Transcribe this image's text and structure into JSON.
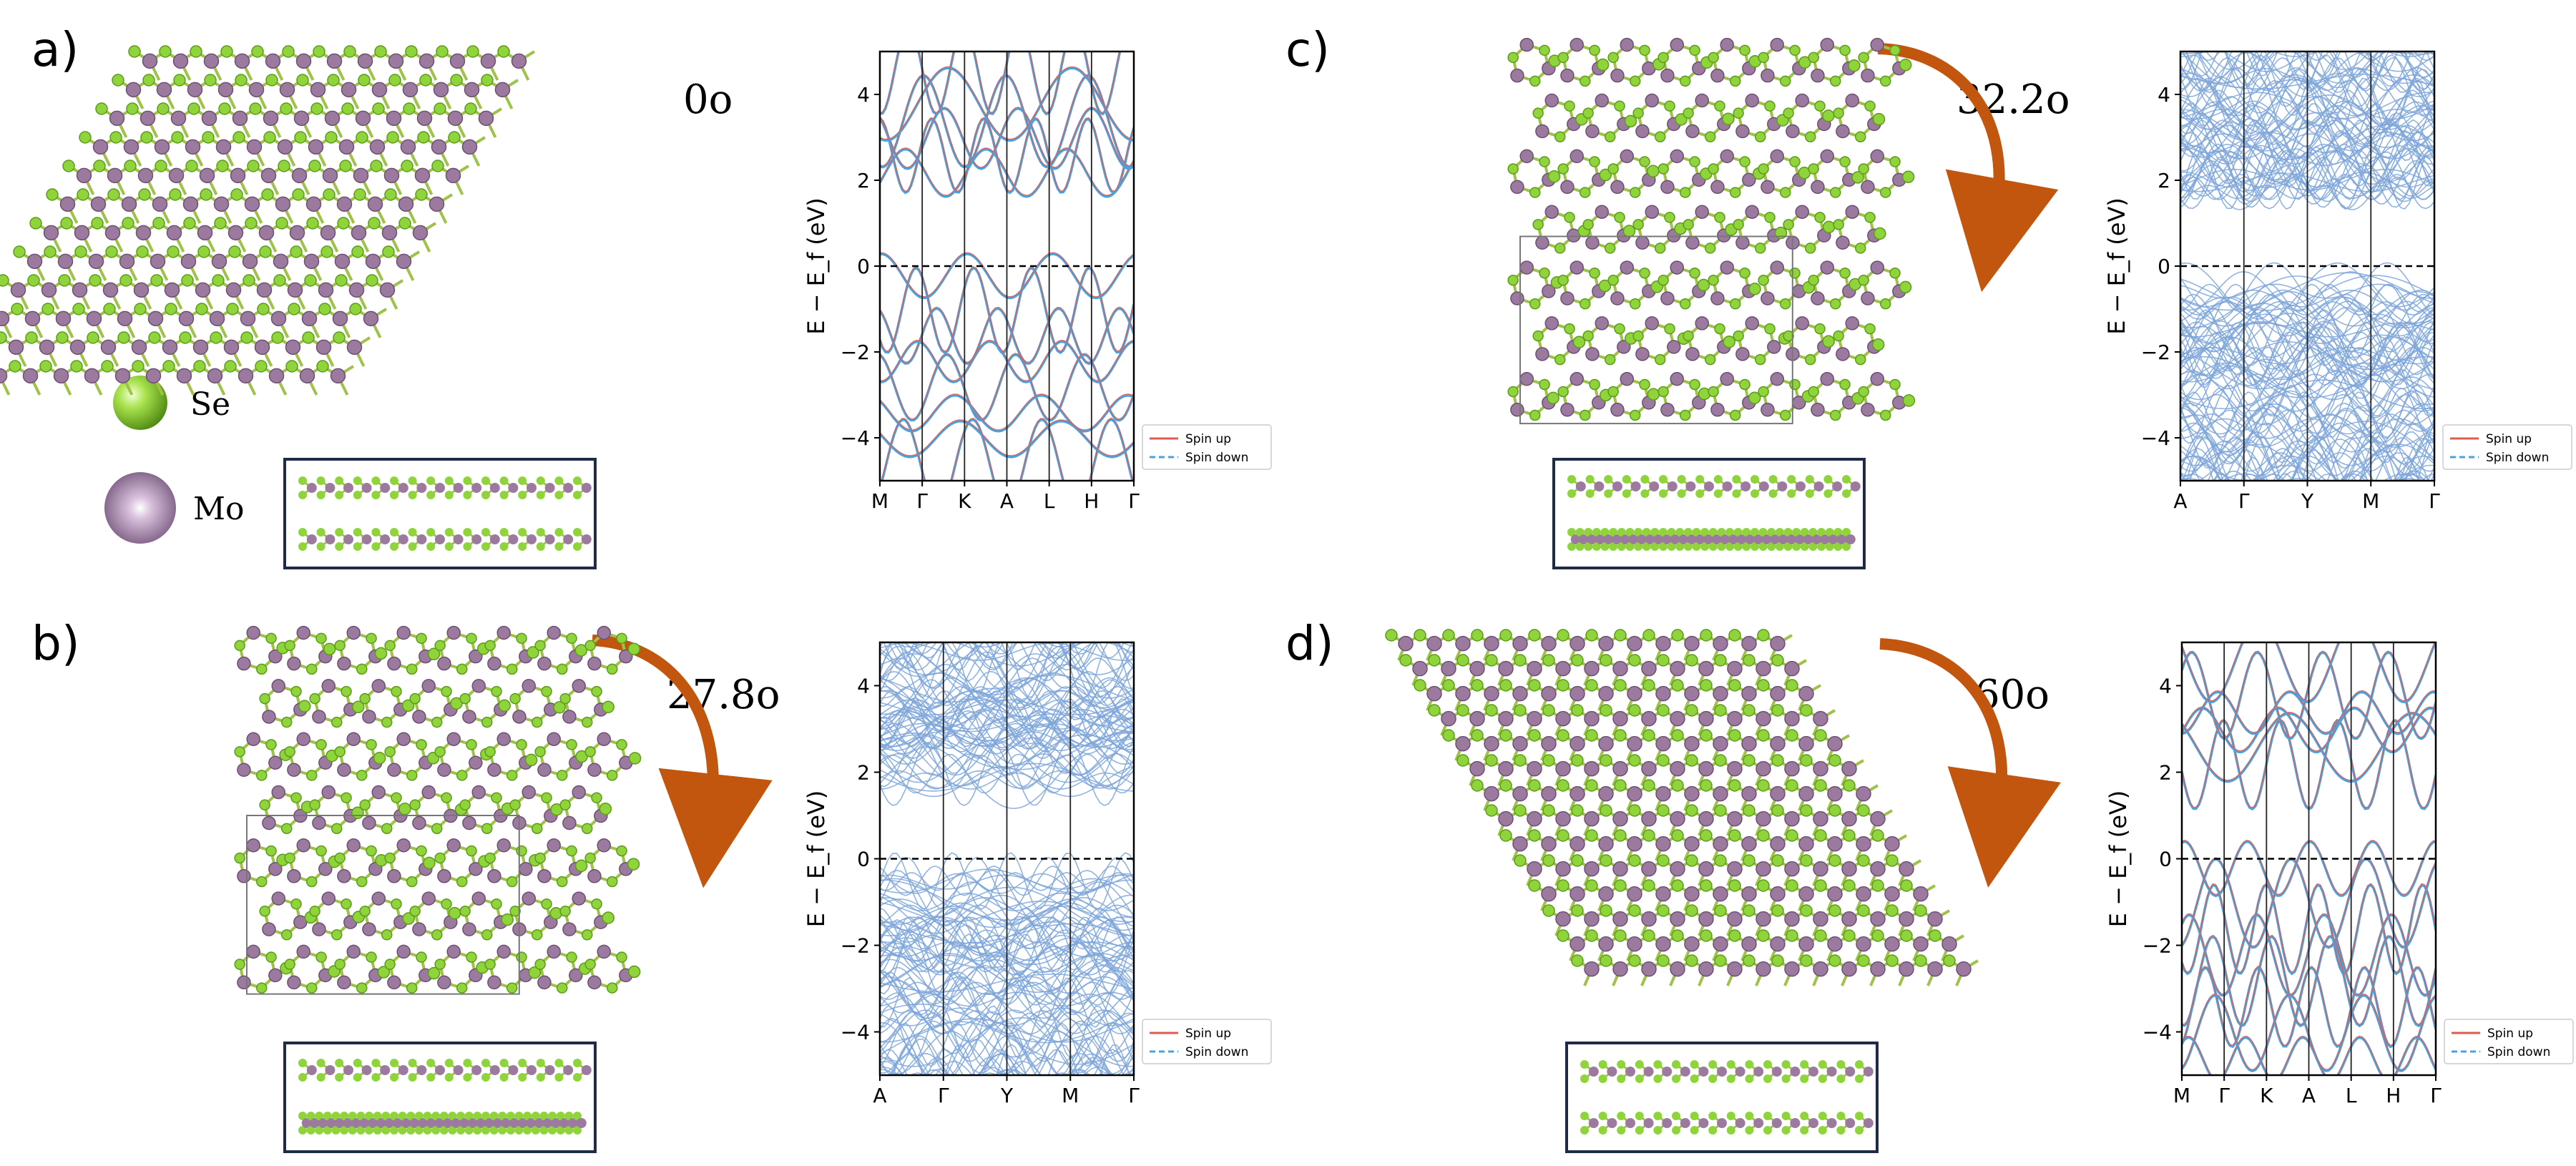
{
  "figure": {
    "panels": [
      {
        "label": "a)",
        "angle": "0o",
        "kind": "parallelogram",
        "angle_deg": 0,
        "arrow": false,
        "kpoints": [
          "M",
          "Γ",
          "K",
          "A",
          "L",
          "H",
          "Γ"
        ],
        "side_view": "ordered"
      },
      {
        "label": "b)",
        "angle": "27.8o",
        "kind": "moire",
        "angle_deg": 27.8,
        "arrow": true,
        "kpoints": [
          "A",
          "Γ",
          "Y",
          "M",
          "Γ"
        ],
        "side_view": "dense"
      },
      {
        "label": "c)",
        "angle": "32.2o",
        "kind": "moire",
        "angle_deg": 32.2,
        "arrow": true,
        "kpoints": [
          "A",
          "Γ",
          "Y",
          "M",
          "Γ"
        ],
        "side_view": "dense"
      },
      {
        "label": "d)",
        "angle": "60o",
        "kind": "parallelogram",
        "angle_deg": 60,
        "arrow": true,
        "kpoints": [
          "M",
          "Γ",
          "K",
          "A",
          "L",
          "H",
          "Γ"
        ],
        "side_view": "ordered"
      }
    ],
    "legend": {
      "se": "Se",
      "mo": "Mo"
    },
    "band_plot": {
      "ylabel": "E − E_f (eV)",
      "ylim": [
        -5,
        5
      ],
      "yticks": [
        "4",
        "2",
        "0",
        "−2",
        "−4"
      ],
      "legend": [
        "Spin up",
        "Spin down"
      ]
    },
    "colors": {
      "se": "#8ed43a",
      "se_dark": "#5e9a1c",
      "mo": "#9c7aa0",
      "mo_dark": "#6c4f72",
      "bond": "#9fc24a",
      "spin_up": "#e05a4f",
      "spin_down": "#4aa3df",
      "band_dense": "#7ea6d9",
      "arrow": "#c2560f",
      "frame": "#1f2a44"
    }
  }
}
